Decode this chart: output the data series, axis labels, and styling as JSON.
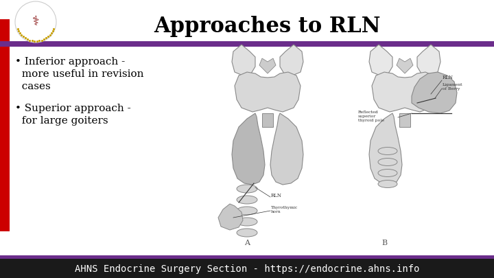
{
  "title": "Approaches to RLN",
  "title_fontsize": 22,
  "title_fontweight": "bold",
  "title_color": "#000000",
  "title_font": "serif",
  "bullet1_line1": "• Inferior approach -",
  "bullet1_line2": "  more useful in revision",
  "bullet1_line3": "  cases",
  "bullet2_line1": "• Superior approach -",
  "bullet2_line2": "  for large goiters",
  "bullet_fontsize": 11,
  "bullet_font": "serif",
  "bullet_color": "#000000",
  "footer_text": "AHNS Endocrine Surgery Section - https://endocrine.ahns.info",
  "footer_bg": "#1a1a1a",
  "footer_text_color": "#ffffff",
  "footer_fontsize": 10,
  "purple_color": "#6b2d8b",
  "red_color": "#cc0000",
  "bg_color": "#ffffff",
  "gray_light": "#e8e8e8",
  "gray_mid": "#c8c8c8",
  "gray_dark": "#a0a0a0",
  "label_color": "#444444",
  "label_fontsize": 5.5,
  "sublabel_fontsize": 4.8
}
